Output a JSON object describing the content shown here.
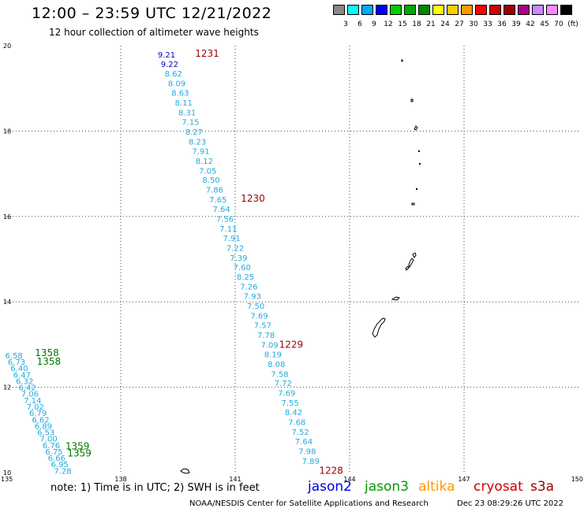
{
  "header": {
    "title": "12:00 – 23:59 UTC 12/21/2022",
    "subtitle": "12 hour collection of altimeter wave heights"
  },
  "colorbar": {
    "colors": [
      "#888888",
      "#00ffff",
      "#00aaff",
      "#0000ff",
      "#00cc00",
      "#00aa00",
      "#008800",
      "#ffff00",
      "#ffcc00",
      "#ff9900",
      "#ff0000",
      "#cc0000",
      "#990000",
      "#aa0088",
      "#cc88ff",
      "#ff88ff",
      "#000000"
    ],
    "labels": [
      "3",
      "6",
      "9",
      "12",
      "15",
      "18",
      "21",
      "24",
      "27",
      "30",
      "33",
      "36",
      "39",
      "42",
      "45",
      "70",
      "(ft)"
    ]
  },
  "map": {
    "lon_ticks": [
      "135",
      "138",
      "141",
      "144",
      "147",
      "150"
    ],
    "lat_ticks": [
      "20",
      "18",
      "16",
      "14",
      "12",
      "10"
    ],
    "lon_range": [
      135,
      150
    ],
    "lat_range": [
      10,
      20
    ],
    "grid": "dotted"
  },
  "chart_data": {
    "type": "scatter",
    "title": "12:00 – 23:59 UTC 12/21/2022",
    "subtitle": "12 hour collection of altimeter wave heights",
    "xlabel": "",
    "ylabel": "",
    "xlim": [
      135,
      150
    ],
    "ylim": [
      10,
      20
    ],
    "grid": true,
    "series": [
      {
        "name": "jason2",
        "color": "#0000cc",
        "points": [
          {
            "lon": 139.2,
            "lat": 19.8,
            "swh": 9.21
          },
          {
            "lon": 139.28,
            "lat": 19.58,
            "swh": 9.22
          }
        ]
      },
      {
        "name": "altika",
        "color": "#22aadd",
        "points": [
          {
            "lon": 139.38,
            "lat": 19.35,
            "swh": 8.62
          },
          {
            "lon": 139.47,
            "lat": 19.12,
            "swh": 8.09
          },
          {
            "lon": 139.56,
            "lat": 18.9,
            "swh": 8.63
          },
          {
            "lon": 139.65,
            "lat": 18.67,
            "swh": 8.11
          },
          {
            "lon": 139.74,
            "lat": 18.44,
            "swh": 8.31
          },
          {
            "lon": 139.83,
            "lat": 18.22,
            "swh": 7.15
          },
          {
            "lon": 139.92,
            "lat": 17.99,
            "swh": 8.27
          },
          {
            "lon": 140.01,
            "lat": 17.76,
            "swh": 8.23
          },
          {
            "lon": 140.1,
            "lat": 17.54,
            "swh": 7.91
          },
          {
            "lon": 140.19,
            "lat": 17.31,
            "swh": 8.12
          },
          {
            "lon": 140.28,
            "lat": 17.08,
            "swh": 7.05
          },
          {
            "lon": 140.37,
            "lat": 16.86,
            "swh": 8.5
          },
          {
            "lon": 140.46,
            "lat": 16.63,
            "swh": 7.86
          },
          {
            "lon": 140.55,
            "lat": 16.4,
            "swh": 7.65
          },
          {
            "lon": 140.64,
            "lat": 16.18,
            "swh": 7.64
          },
          {
            "lon": 140.73,
            "lat": 15.95,
            "swh": 7.56
          },
          {
            "lon": 140.82,
            "lat": 15.72,
            "swh": 7.11
          },
          {
            "lon": 140.91,
            "lat": 15.5,
            "swh": 7.91
          },
          {
            "lon": 141.0,
            "lat": 15.27,
            "swh": 7.22
          },
          {
            "lon": 141.09,
            "lat": 15.04,
            "swh": 7.39
          },
          {
            "lon": 141.18,
            "lat": 14.82,
            "swh": 7.6
          },
          {
            "lon": 141.27,
            "lat": 14.59,
            "swh": 8.25
          },
          {
            "lon": 141.36,
            "lat": 14.36,
            "swh": 7.26
          },
          {
            "lon": 141.45,
            "lat": 14.14,
            "swh": 7.93
          },
          {
            "lon": 141.54,
            "lat": 13.91,
            "swh": 7.5
          },
          {
            "lon": 141.63,
            "lat": 13.68,
            "swh": 7.69
          },
          {
            "lon": 141.72,
            "lat": 13.46,
            "swh": 7.57
          },
          {
            "lon": 141.81,
            "lat": 13.23,
            "swh": 7.78
          },
          {
            "lon": 141.9,
            "lat": 13.0,
            "swh": 7.09
          },
          {
            "lon": 141.99,
            "lat": 12.78,
            "swh": 8.19
          },
          {
            "lon": 142.08,
            "lat": 12.55,
            "swh": 8.08
          },
          {
            "lon": 142.17,
            "lat": 12.32,
            "swh": 7.58
          },
          {
            "lon": 142.26,
            "lat": 12.1,
            "swh": 7.72
          },
          {
            "lon": 142.35,
            "lat": 11.87,
            "swh": 7.69
          },
          {
            "lon": 142.44,
            "lat": 11.64,
            "swh": 7.55
          },
          {
            "lon": 142.53,
            "lat": 11.42,
            "swh": 8.42
          },
          {
            "lon": 142.62,
            "lat": 11.19,
            "swh": 7.68
          },
          {
            "lon": 142.71,
            "lat": 10.96,
            "swh": 7.52
          },
          {
            "lon": 142.8,
            "lat": 10.74,
            "swh": 7.64
          },
          {
            "lon": 142.89,
            "lat": 10.51,
            "swh": 7.98
          },
          {
            "lon": 142.98,
            "lat": 10.28,
            "swh": 7.89
          },
          {
            "lon": 135.2,
            "lat": 12.75,
            "swh": 6.58
          },
          {
            "lon": 135.27,
            "lat": 12.6,
            "swh": 6.73
          },
          {
            "lon": 135.34,
            "lat": 12.45,
            "swh": 6.4
          },
          {
            "lon": 135.41,
            "lat": 12.3,
            "swh": 6.47
          },
          {
            "lon": 135.48,
            "lat": 12.15,
            "swh": 6.32
          },
          {
            "lon": 135.55,
            "lat": 12.0,
            "swh": 6.42
          },
          {
            "lon": 135.62,
            "lat": 11.85,
            "swh": 7.06
          },
          {
            "lon": 135.69,
            "lat": 11.7,
            "swh": 7.14
          },
          {
            "lon": 135.76,
            "lat": 11.55,
            "swh": 7.02
          },
          {
            "lon": 135.83,
            "lat": 11.4,
            "swh": 6.79
          },
          {
            "lon": 135.9,
            "lat": 11.25,
            "swh": 6.62
          },
          {
            "lon": 135.97,
            "lat": 11.1,
            "swh": 6.89
          },
          {
            "lon": 136.04,
            "lat": 10.95,
            "swh": 6.53
          },
          {
            "lon": 136.11,
            "lat": 10.8,
            "swh": 7.0
          },
          {
            "lon": 136.18,
            "lat": 10.65,
            "swh": 6.76
          },
          {
            "lon": 136.25,
            "lat": 10.5,
            "swh": 6.75
          },
          {
            "lon": 136.32,
            "lat": 10.35,
            "swh": 6.66
          },
          {
            "lon": 136.4,
            "lat": 10.2,
            "swh": 6.95
          },
          {
            "lon": 136.48,
            "lat": 10.05,
            "swh": 7.28
          }
        ]
      },
      {
        "name": "jason3",
        "color": "#009900",
        "points": []
      }
    ]
  },
  "time_labels": [
    {
      "lon": 139.95,
      "lat": 19.82,
      "text": "1231",
      "color": "#990000"
    },
    {
      "lon": 141.15,
      "lat": 16.42,
      "text": "1230",
      "color": "#990000"
    },
    {
      "lon": 142.15,
      "lat": 13.0,
      "text": "1229",
      "color": "#990000"
    },
    {
      "lon": 143.2,
      "lat": 10.05,
      "text": "1228",
      "color": "#990000"
    },
    {
      "lon": 135.75,
      "lat": 12.8,
      "text": "1358",
      "color": "#007700"
    },
    {
      "lon": 135.8,
      "lat": 12.6,
      "text": "1358",
      "color": "#007700"
    },
    {
      "lon": 136.55,
      "lat": 10.62,
      "text": "1359",
      "color": "#007700"
    },
    {
      "lon": 136.6,
      "lat": 10.45,
      "text": "1359",
      "color": "#007700"
    }
  ],
  "footer": {
    "note": "note:  1) Time is in UTC;  2) SWH is in feet",
    "satellites": [
      {
        "name": "jason2",
        "color": "#0000dd"
      },
      {
        "name": "jason3",
        "color": "#009900"
      },
      {
        "name": "altika",
        "color": "#ff9900"
      },
      {
        "name": "cryosat",
        "color": "#cc0000"
      },
      {
        "name": "s3a",
        "color": "#990000"
      }
    ],
    "credit": "NOAA/NESDIS Center for Satellite Applications and Research",
    "timestamp": "Dec 23 08:29:26 UTC 2022"
  }
}
